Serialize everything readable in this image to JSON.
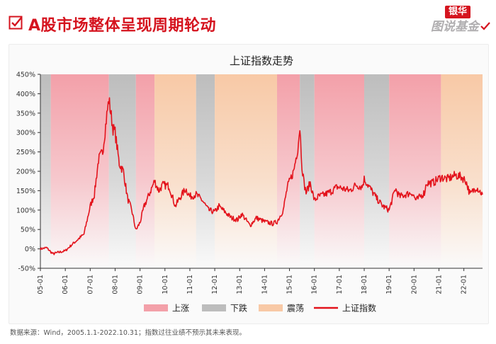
{
  "page": {
    "title": "A股市场整体呈现周期轮动",
    "logo_top": "银华",
    "logo_bottom": "图说基金",
    "source_note": "数据来源：Wind，2005.1.1-2022.10.31；指数过往业绩不预示其未来表现。"
  },
  "colors": {
    "brand_red": "#d5141f",
    "up_band": "#f3a0a9",
    "down_band": "#bdbdbd",
    "sideways_band": "#f8c9a6",
    "line": "#e3131c"
  },
  "chart_data": {
    "type": "line",
    "title": "上证指数走势",
    "xlabel": "",
    "ylabel": "",
    "ylim": [
      -50,
      450
    ],
    "yticks": [
      -50,
      0,
      50,
      100,
      150,
      200,
      250,
      300,
      350,
      400,
      450
    ],
    "ytick_labels": [
      "-50%",
      "0%",
      "50%",
      "100%",
      "150%",
      "200%",
      "250%",
      "300%",
      "350%",
      "400%",
      "450%"
    ],
    "xlim": [
      "2005-01",
      "2022-10"
    ],
    "xtick_labels": [
      "05-01",
      "06-01",
      "07-01",
      "08-01",
      "09-01",
      "10-01",
      "11-01",
      "12-01",
      "13-01",
      "14-01",
      "15-01",
      "16-01",
      "17-01",
      "18-01",
      "19-01",
      "20-01",
      "21-01",
      "22-01"
    ],
    "grid": false,
    "legend_position": "bottom",
    "legend": [
      {
        "label": "上涨",
        "kind": "band",
        "color": "#f3a0a9"
      },
      {
        "label": "下跌",
        "kind": "band",
        "color": "#bdbdbd"
      },
      {
        "label": "震荡",
        "kind": "band",
        "color": "#f8c9a6"
      },
      {
        "label": "上证指数",
        "kind": "line",
        "color": "#e3131c"
      }
    ],
    "bands": [
      {
        "phase": "下跌",
        "start": "2005-01",
        "end": "2005-06"
      },
      {
        "phase": "上涨",
        "start": "2005-06",
        "end": "2007-10"
      },
      {
        "phase": "下跌",
        "start": "2007-10",
        "end": "2008-11"
      },
      {
        "phase": "上涨",
        "start": "2008-11",
        "end": "2009-08"
      },
      {
        "phase": "震荡",
        "start": "2009-08",
        "end": "2011-04"
      },
      {
        "phase": "下跌",
        "start": "2011-04",
        "end": "2012-01"
      },
      {
        "phase": "震荡",
        "start": "2012-01",
        "end": "2014-07"
      },
      {
        "phase": "上涨",
        "start": "2014-07",
        "end": "2015-06"
      },
      {
        "phase": "下跌",
        "start": "2015-06",
        "end": "2016-01"
      },
      {
        "phase": "上涨",
        "start": "2016-01",
        "end": "2018-01"
      },
      {
        "phase": "下跌",
        "start": "2018-01",
        "end": "2019-01"
      },
      {
        "phase": "上涨",
        "start": "2019-01",
        "end": "2021-02"
      },
      {
        "phase": "震荡",
        "start": "2021-02",
        "end": "2022-10"
      }
    ],
    "series": [
      {
        "name": "上证指数",
        "color": "#e3131c",
        "points": [
          [
            "2005-01",
            0
          ],
          [
            "2005-04",
            3
          ],
          [
            "2005-07",
            -13
          ],
          [
            "2005-09",
            -10
          ],
          [
            "2006-01",
            -5
          ],
          [
            "2006-04",
            10
          ],
          [
            "2006-07",
            24
          ],
          [
            "2006-10",
            38
          ],
          [
            "2007-01",
            110
          ],
          [
            "2007-03",
            140
          ],
          [
            "2007-05",
            230
          ],
          [
            "2007-07",
            250
          ],
          [
            "2007-09",
            345
          ],
          [
            "2007-10",
            385
          ],
          [
            "2007-12",
            310
          ],
          [
            "2008-01",
            300
          ],
          [
            "2008-03",
            220
          ],
          [
            "2008-05",
            200
          ],
          [
            "2008-07",
            130
          ],
          [
            "2008-09",
            100
          ],
          [
            "2008-11",
            48
          ],
          [
            "2009-01",
            68
          ],
          [
            "2009-03",
            110
          ],
          [
            "2009-05",
            135
          ],
          [
            "2009-08",
            175
          ],
          [
            "2009-10",
            150
          ],
          [
            "2009-12",
            165
          ],
          [
            "2010-03",
            162
          ],
          [
            "2010-06",
            110
          ],
          [
            "2010-08",
            130
          ],
          [
            "2010-11",
            155
          ],
          [
            "2011-01",
            135
          ],
          [
            "2011-04",
            140
          ],
          [
            "2011-07",
            125
          ],
          [
            "2011-10",
            100
          ],
          [
            "2012-01",
            95
          ],
          [
            "2012-03",
            110
          ],
          [
            "2012-06",
            95
          ],
          [
            "2012-09",
            80
          ],
          [
            "2012-12",
            75
          ],
          [
            "2013-02",
            90
          ],
          [
            "2013-06",
            60
          ],
          [
            "2013-09",
            80
          ],
          [
            "2014-01",
            70
          ],
          [
            "2014-05",
            65
          ],
          [
            "2014-07",
            70
          ],
          [
            "2014-10",
            100
          ],
          [
            "2014-12",
            160
          ],
          [
            "2015-03",
            200
          ],
          [
            "2015-05",
            260
          ],
          [
            "2015-06",
            315
          ],
          [
            "2015-07",
            215
          ],
          [
            "2015-08",
            170
          ],
          [
            "2015-09",
            145
          ],
          [
            "2015-11",
            170
          ],
          [
            "2016-01",
            125
          ],
          [
            "2016-03",
            135
          ],
          [
            "2016-06",
            140
          ],
          [
            "2016-09",
            148
          ],
          [
            "2016-12",
            160
          ],
          [
            "2017-03",
            155
          ],
          [
            "2017-06",
            150
          ],
          [
            "2017-09",
            165
          ],
          [
            "2017-12",
            160
          ],
          [
            "2018-01",
            180
          ],
          [
            "2018-04",
            155
          ],
          [
            "2018-07",
            130
          ],
          [
            "2018-10",
            110
          ],
          [
            "2019-01",
            100
          ],
          [
            "2019-04",
            155
          ],
          [
            "2019-06",
            135
          ],
          [
            "2019-09",
            140
          ],
          [
            "2019-12",
            145
          ],
          [
            "2020-02",
            125
          ],
          [
            "2020-06",
            145
          ],
          [
            "2020-07",
            170
          ],
          [
            "2020-10",
            170
          ],
          [
            "2021-02",
            185
          ],
          [
            "2021-05",
            180
          ],
          [
            "2021-09",
            190
          ],
          [
            "2021-12",
            185
          ],
          [
            "2022-02",
            175
          ],
          [
            "2022-04",
            140
          ],
          [
            "2022-07",
            160
          ],
          [
            "2022-10",
            140
          ]
        ]
      }
    ]
  }
}
